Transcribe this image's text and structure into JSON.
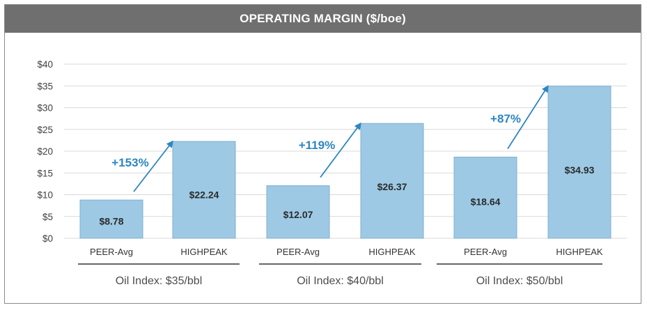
{
  "chart_data": {
    "type": "bar",
    "title": "OPERATING MARGIN ($/boe)",
    "ylim": [
      0,
      40
    ],
    "yticks": [
      "$0",
      "$5",
      "$10",
      "$15",
      "$20",
      "$25",
      "$30",
      "$35",
      "$40"
    ],
    "ytick_values": [
      0,
      5,
      10,
      15,
      20,
      25,
      30,
      35,
      40
    ],
    "grid": true,
    "categories": [
      "PEER-Avg",
      "HIGHPEAK",
      "PEER-Avg",
      "HIGHPEAK",
      "PEER-Avg",
      "HIGHPEAK"
    ],
    "values": [
      8.78,
      22.24,
      12.07,
      26.37,
      18.64,
      34.93
    ],
    "value_labels": [
      "$8.78",
      "$22.24",
      "$12.07",
      "$26.37",
      "$18.64",
      "$34.93"
    ],
    "groups": [
      {
        "label": "Oil Index: $35/bbl",
        "change": "+153%"
      },
      {
        "label": "Oil Index: $40/bbl",
        "change": "+119%"
      },
      {
        "label": "Oil Index: $50/bbl",
        "change": "+87%"
      }
    ],
    "colors": {
      "bar": "#9dc9e4",
      "bar_border": "#7fb0cf",
      "arrow": "#2e86c1",
      "title_bg": "#6f6f6f",
      "grid": "#d9d9d9"
    }
  }
}
